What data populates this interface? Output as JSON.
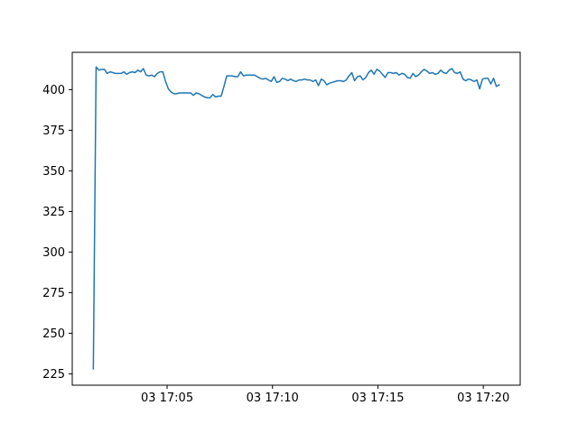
{
  "chart_data": {
    "type": "line",
    "title": "",
    "xlabel": "",
    "ylabel": "",
    "grid": false,
    "legend": "none",
    "x_axis_type": "time",
    "x_start": "17:01:30",
    "x_end": "17:20:45",
    "xlim": [
      "17:00:30",
      "17:21:45"
    ],
    "ylim": [
      218,
      423
    ],
    "x_ticks": [
      {
        "time": "17:05:00",
        "label": "03 17:05"
      },
      {
        "time": "17:10:00",
        "label": "03 17:10"
      },
      {
        "time": "17:15:00",
        "label": "03 17:15"
      },
      {
        "time": "17:20:00",
        "label": "03 17:20"
      }
    ],
    "y_ticks": [
      225,
      250,
      275,
      300,
      325,
      350,
      375,
      400
    ],
    "line_color": "#1f77b4",
    "series": [
      {
        "values": [
          228,
          414,
          412,
          412.5,
          412.5,
          410,
          411,
          410.5,
          410,
          410,
          410,
          411,
          409.5,
          410.5,
          411,
          410.5,
          412,
          411,
          413,
          409,
          408.5,
          409,
          408,
          410,
          411,
          411,
          405,
          400.5,
          398.5,
          397.5,
          397.5,
          398,
          398,
          398,
          398,
          398,
          396.5,
          398,
          397.5,
          396.5,
          395.5,
          395,
          395,
          397,
          395.5,
          396,
          396,
          402,
          408.5,
          408.5,
          408.5,
          408,
          408,
          411,
          408.5,
          409,
          409,
          409,
          409,
          408,
          407,
          406.5,
          407,
          406,
          405,
          408,
          404.5,
          405,
          407,
          406.5,
          405.5,
          406.5,
          405.5,
          405,
          406,
          406,
          406.5,
          406,
          406,
          405,
          406,
          402.5,
          406.5,
          405.5,
          403,
          404,
          404.5,
          405,
          405.5,
          405.5,
          405,
          406,
          408.5,
          410.5,
          405.5,
          408,
          408.5,
          406,
          407.5,
          410.5,
          412,
          409.5,
          412.5,
          411.5,
          409.5,
          407.5,
          410.5,
          410.5,
          410,
          410.5,
          409,
          410,
          409.5,
          407.5,
          407,
          410,
          408,
          409,
          411,
          412.5,
          411.5,
          410,
          410.5,
          409.5,
          410,
          412,
          410.5,
          410,
          412,
          413,
          410.5,
          410,
          411,
          406.5,
          405.5,
          406.5,
          406,
          405,
          406,
          400.5,
          406.5,
          407,
          407,
          403.5,
          407,
          402,
          403
        ]
      }
    ]
  }
}
